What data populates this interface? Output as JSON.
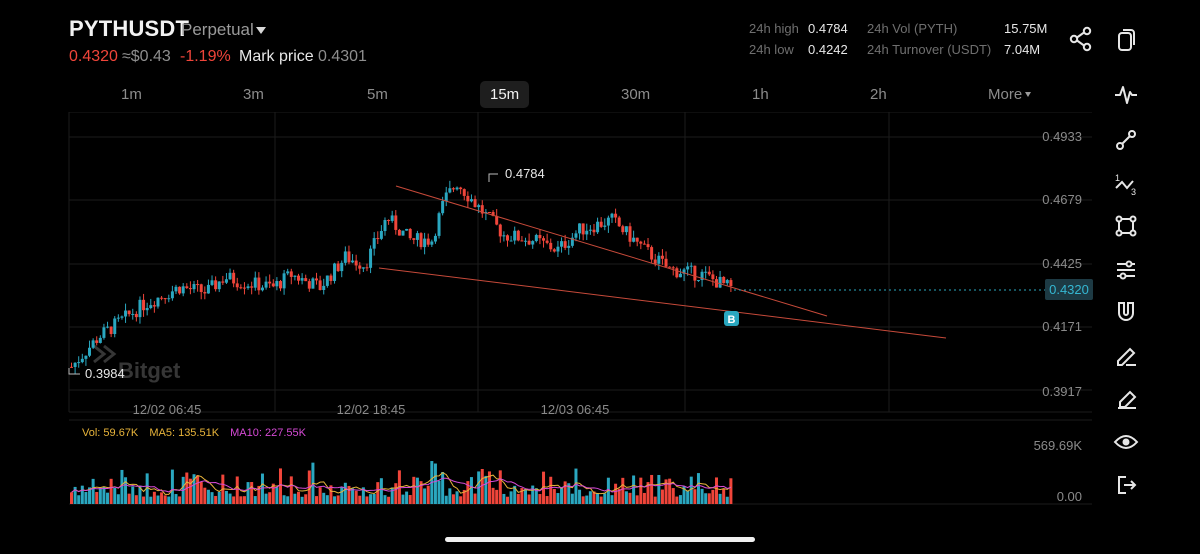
{
  "header": {
    "symbol": "PYTHUSDT",
    "contract_type": "Perpetual",
    "last_price": "0.4320",
    "usd_price": "≈$0.43",
    "change": "-1.19%",
    "mark_label": "Mark price",
    "mark_price": "0.4301"
  },
  "stats": {
    "high_label": "24h high",
    "high_value": "0.4784",
    "low_label": "24h low",
    "low_value": "0.4242",
    "vol_label": "24h Vol (PYTH)",
    "vol_value": "15.75M",
    "turnover_label": "24h Turnover (USDT)",
    "turnover_value": "7.04M"
  },
  "timeframes": [
    "1m",
    "3m",
    "5m",
    "15m",
    "30m",
    "1h",
    "2h"
  ],
  "active_timeframe": "15m",
  "more_label": "More",
  "chart": {
    "price_axis": [
      "0.4933",
      "0.4679",
      "0.4425",
      "0.4171",
      "0.3917"
    ],
    "current_price_tag": "0.4320",
    "high_marker": "0.4784",
    "low_marker": "0.3984",
    "time_axis": [
      "12/02 06:45",
      "12/02 18:45",
      "12/03 06:45"
    ],
    "buy_marker": "B",
    "watermark": "Bitget"
  },
  "volume": {
    "vol_label": "Vol: 59.67K",
    "ma5_label": "MA5: 135.51K",
    "ma10_label": "MA10: 227.55K",
    "axis_top": "569.69K",
    "axis_bottom": "0.00"
  },
  "colors": {
    "up": "#2aa7c0",
    "down": "#f0453a",
    "ma5": "#e8b43a",
    "ma10": "#d64ad6",
    "trendline": "#c74a3a"
  },
  "icons": {
    "share": "share-icon",
    "copy": "copy-icon",
    "indicator": "pulse-icon",
    "tools": [
      "line-tool-icon",
      "fib-tool-icon",
      "rect-tool-icon",
      "settings-lines-icon",
      "magnet-icon",
      "pencil-icon",
      "eraser-icon",
      "eye-icon",
      "exit-icon"
    ]
  }
}
